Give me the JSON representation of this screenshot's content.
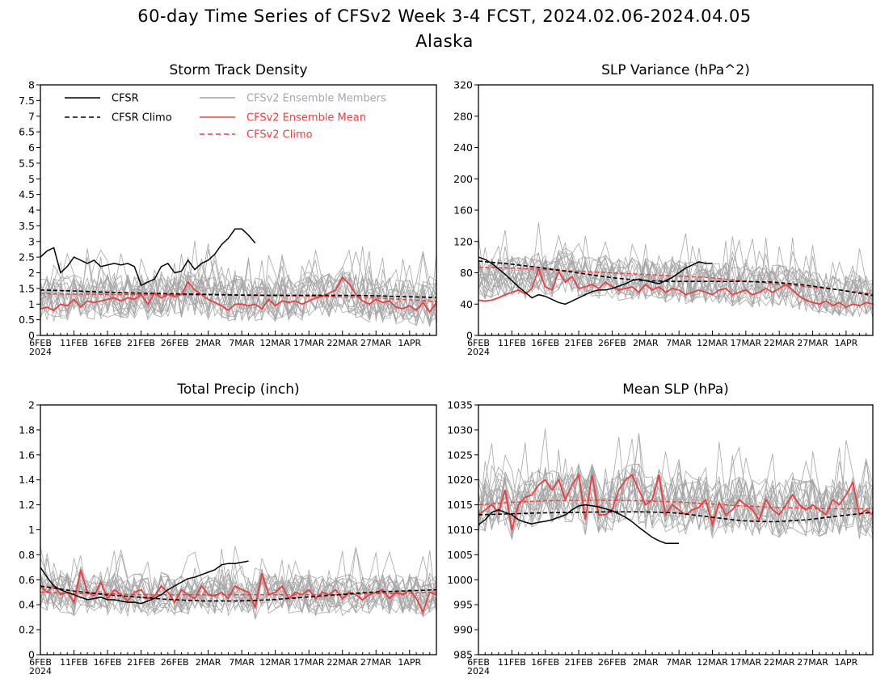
{
  "title": "60-day Time Series of CFSv2 Week 3-4 FCST, 2024.02.06-2024.04.05",
  "subtitle": "Alaska",
  "legend": {
    "cfsr": "CFSR",
    "cfsr_climo": "CFSR Climo",
    "ens_members": "CFSv2 Ensemble Members",
    "ens_mean": "CFSv2 Ensemble Mean",
    "cfsv2_climo": "CFSv2 Climo"
  },
  "colors": {
    "cfsr": "#000000",
    "ens_members": "#a6a6a6",
    "ens_mean": "#f03c3c",
    "cfsv2_climo": "#f03c3c",
    "axes": "#000000"
  },
  "chart_data": [
    {
      "id": "storm",
      "type": "line",
      "title": "Storm Track Density",
      "xlabel": "",
      "ylabel": "",
      "x_ticks": [
        "6FEB\n2024",
        "11FEB",
        "16FEB",
        "21FEB",
        "26FEB",
        "2MAR",
        "7MAR",
        "12MAR",
        "17MAR",
        "22MAR",
        "27MAR",
        "1APR"
      ],
      "ylim": [
        0,
        8
      ],
      "y_ticks": [
        "0",
        "0.5",
        "1",
        "1.5",
        "2",
        "2.5",
        "3",
        "3.5",
        "4",
        "4.5",
        "5",
        "5.5",
        "6",
        "6.5",
        "7",
        "7.5",
        "8"
      ],
      "grid": false,
      "legend_position": "top-left",
      "members_spread": 0.45,
      "series": [
        {
          "key": "cfsr_climo",
          "kind": "curve",
          "values": [
            1.45,
            1.42,
            1.38,
            1.35,
            1.33,
            1.31,
            1.29,
            1.28,
            1.28,
            1.28,
            1.27,
            1.24,
            1.21
          ]
        },
        {
          "key": "cfsv2_climo",
          "kind": "curve",
          "values": [
            1.33,
            1.32,
            1.31,
            1.3,
            1.29,
            1.29,
            1.28,
            1.27,
            1.26,
            1.24,
            1.2,
            1.15,
            1.08
          ]
        },
        {
          "key": "ens_mean",
          "kind": "daily",
          "values": [
            0.85,
            0.9,
            0.8,
            1.0,
            0.95,
            1.15,
            0.9,
            1.1,
            1.05,
            1.1,
            1.15,
            1.2,
            1.1,
            1.2,
            1.15,
            1.3,
            1.0,
            1.35,
            1.2,
            1.3,
            1.25,
            1.3,
            1.7,
            1.45,
            1.3,
            1.15,
            1.05,
            0.95,
            0.8,
            1.0,
            1.0,
            0.95,
            1.0,
            0.85,
            1.15,
            0.95,
            1.1,
            1.05,
            1.1,
            1.0,
            1.1,
            1.2,
            1.25,
            1.35,
            1.45,
            1.85,
            1.65,
            1.3,
            1.1,
            1.0,
            1.15,
            1.05,
            1.1,
            0.9,
            0.85,
            0.95,
            0.8,
            1.05,
            0.75,
            1.05
          ]
        },
        {
          "key": "cfsr",
          "kind": "daily",
          "values": [
            2.5,
            2.7,
            2.8,
            2.0,
            2.2,
            2.5,
            2.4,
            2.3,
            2.4,
            2.2,
            2.25,
            2.3,
            2.25,
            2.3,
            2.2,
            1.6,
            1.7,
            1.8,
            2.2,
            2.3,
            2.0,
            2.05,
            2.4,
            2.1,
            2.3,
            2.4,
            2.6,
            2.9,
            3.1,
            3.4,
            3.4,
            3.2,
            2.95
          ]
        }
      ]
    },
    {
      "id": "slpvar",
      "type": "line",
      "title": "SLP Variance (hPa^2)",
      "xlabel": "",
      "ylabel": "",
      "x_ticks": [
        "6FEB\n2024",
        "11FEB",
        "16FEB",
        "21FEB",
        "26FEB",
        "2MAR",
        "7MAR",
        "12MAR",
        "17MAR",
        "22MAR",
        "27MAR",
        "1APR"
      ],
      "ylim": [
        0,
        320
      ],
      "y_ticks": [
        "0",
        "40",
        "80",
        "120",
        "160",
        "200",
        "240",
        "280",
        "320"
      ],
      "grid": false,
      "members_spread": 17,
      "series": [
        {
          "key": "cfsr_climo",
          "kind": "curve",
          "values": [
            95,
            91,
            86,
            80,
            74,
            70,
            69,
            69,
            69,
            68,
            64,
            58,
            51
          ]
        },
        {
          "key": "cfsv2_climo",
          "kind": "curve",
          "values": [
            87,
            86,
            84,
            82,
            80,
            78,
            76,
            74,
            70,
            66,
            62,
            58,
            53
          ]
        },
        {
          "key": "ens_mean",
          "kind": "daily",
          "values": [
            45,
            44,
            45,
            48,
            52,
            55,
            58,
            53,
            60,
            85,
            62,
            58,
            82,
            68,
            75,
            60,
            62,
            65,
            60,
            68,
            62,
            58,
            60,
            62,
            55,
            65,
            58,
            62,
            55,
            60,
            58,
            52,
            55,
            58,
            55,
            52,
            58,
            60,
            52,
            55,
            58,
            52,
            55,
            60,
            55,
            60,
            65,
            58,
            50,
            45,
            42,
            40,
            44,
            38,
            42,
            36,
            40,
            38,
            42,
            40
          ]
        },
        {
          "key": "cfsr",
          "kind": "daily",
          "values": [
            100,
            97,
            92,
            85,
            78,
            70,
            62,
            55,
            48,
            52,
            50,
            46,
            42,
            40,
            44,
            48,
            52,
            56,
            58,
            58,
            60,
            63,
            66,
            70,
            72,
            70,
            68,
            66,
            70,
            74,
            80,
            86,
            90,
            94,
            92,
            92
          ]
        }
      ]
    },
    {
      "id": "precip",
      "type": "line",
      "title": "Total Precip (inch)",
      "xlabel": "",
      "ylabel": "",
      "x_ticks": [
        "6FEB\n2024",
        "11FEB",
        "16FEB",
        "21FEB",
        "26FEB",
        "2MAR",
        "7MAR",
        "12MAR",
        "17MAR",
        "22MAR",
        "27MAR",
        "1APR"
      ],
      "ylim": [
        0,
        2
      ],
      "y_ticks": [
        "0",
        "0.2",
        "0.4",
        "0.6",
        "0.8",
        "1",
        "1.2",
        "1.4",
        "1.6",
        "1.8",
        "2"
      ],
      "grid": false,
      "members_spread": 0.1,
      "series": [
        {
          "key": "cfsr_climo",
          "kind": "curve",
          "values": [
            0.55,
            0.51,
            0.48,
            0.46,
            0.44,
            0.43,
            0.43,
            0.44,
            0.46,
            0.48,
            0.5,
            0.51,
            0.52
          ]
        },
        {
          "key": "cfsv2_climo",
          "kind": "curve",
          "values": [
            0.5,
            0.49,
            0.49,
            0.48,
            0.48,
            0.48,
            0.48,
            0.48,
            0.48,
            0.48,
            0.49,
            0.49,
            0.5
          ]
        },
        {
          "key": "ens_mean",
          "kind": "daily",
          "values": [
            0.55,
            0.5,
            0.56,
            0.48,
            0.5,
            0.42,
            0.68,
            0.5,
            0.47,
            0.58,
            0.45,
            0.52,
            0.48,
            0.43,
            0.5,
            0.52,
            0.45,
            0.47,
            0.55,
            0.5,
            0.42,
            0.52,
            0.48,
            0.45,
            0.55,
            0.48,
            0.47,
            0.5,
            0.45,
            0.55,
            0.52,
            0.5,
            0.38,
            0.65,
            0.48,
            0.5,
            0.55,
            0.45,
            0.5,
            0.48,
            0.52,
            0.45,
            0.5,
            0.48,
            0.52,
            0.45,
            0.5,
            0.48,
            0.44,
            0.48,
            0.5,
            0.52,
            0.45,
            0.5,
            0.48,
            0.52,
            0.45,
            0.34,
            0.5,
            0.48
          ]
        },
        {
          "key": "cfsr",
          "kind": "daily",
          "values": [
            0.7,
            0.62,
            0.55,
            0.52,
            0.5,
            0.48,
            0.46,
            0.44,
            0.45,
            0.46,
            0.44,
            0.44,
            0.43,
            0.42,
            0.42,
            0.41,
            0.43,
            0.45,
            0.48,
            0.52,
            0.55,
            0.58,
            0.61,
            0.62,
            0.64,
            0.66,
            0.68,
            0.72,
            0.73,
            0.73,
            0.74,
            0.75
          ]
        }
      ]
    },
    {
      "id": "meanslp",
      "type": "line",
      "title": "Mean SLP (hPa)",
      "xlabel": "",
      "ylabel": "",
      "x_ticks": [
        "6FEB\n2024",
        "11FEB",
        "16FEB",
        "21FEB",
        "26FEB",
        "2MAR",
        "7MAR",
        "12MAR",
        "17MAR",
        "22MAR",
        "27MAR",
        "1APR"
      ],
      "ylim": [
        985,
        1035
      ],
      "y_ticks": [
        "985",
        "990",
        "995",
        "1000",
        "1005",
        "1010",
        "1015",
        "1020",
        "1025",
        "1030",
        "1035"
      ],
      "grid": false,
      "members_spread": 3.5,
      "series": [
        {
          "key": "cfsr_climo",
          "kind": "curve",
          "values": [
            1013.0,
            1013.2,
            1013.4,
            1013.5,
            1013.6,
            1013.6,
            1013.4,
            1012.6,
            1011.8,
            1011.6,
            1012.0,
            1012.8,
            1013.5
          ]
        },
        {
          "key": "cfsv2_climo",
          "kind": "curve",
          "values": [
            1015.0,
            1015.5,
            1015.8,
            1015.9,
            1015.9,
            1015.8,
            1015.6,
            1015.2,
            1014.8,
            1014.5,
            1014.3,
            1014.2,
            1014.2
          ]
        },
        {
          "key": "ens_mean",
          "kind": "daily",
          "values": [
            1013,
            1014,
            1015,
            1013.5,
            1018,
            1010,
            1015,
            1016.5,
            1017,
            1019,
            1020,
            1018,
            1020,
            1016,
            1019,
            1021,
            1012,
            1021,
            1013,
            1013,
            1014,
            1018,
            1020,
            1021,
            1018,
            1015,
            1016,
            1021,
            1013,
            1015,
            1014,
            1013,
            1014,
            1014.5,
            1016,
            1011,
            1015.5,
            1013,
            1014,
            1016,
            1015,
            1014,
            1012,
            1016,
            1014,
            1013,
            1015,
            1017,
            1015,
            1014,
            1015,
            1014,
            1013,
            1016,
            1015,
            1017,
            1019.5,
            1013,
            1014,
            1013
          ]
        },
        {
          "key": "cfsr",
          "kind": "daily",
          "values": [
            1011,
            1012,
            1013.5,
            1014,
            1013.5,
            1013,
            1012,
            1011.5,
            1011.2,
            1011.5,
            1011.7,
            1012,
            1012.5,
            1013,
            1014,
            1014.8,
            1015,
            1014.8,
            1014.6,
            1014.2,
            1013.8,
            1013.2,
            1012.5,
            1011.6,
            1010.5,
            1009.5,
            1008.5,
            1007.8,
            1007.3,
            1007.3,
            1007.3
          ]
        }
      ]
    }
  ]
}
